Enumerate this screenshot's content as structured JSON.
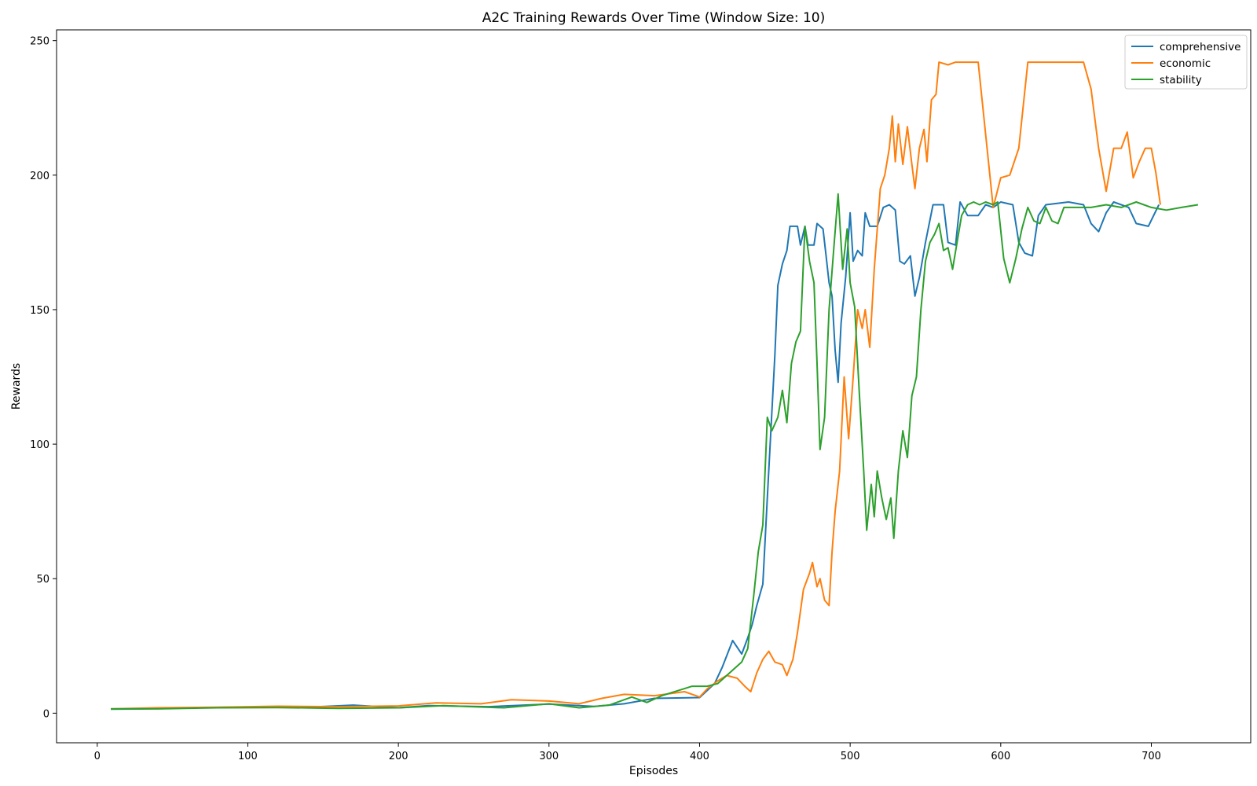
{
  "chart_data": {
    "type": "line",
    "title": "A2C Training Rewards Over Time (Window Size: 10)",
    "xlabel": "Episodes",
    "ylabel": "Rewards",
    "xlim": [
      -27,
      766
    ],
    "ylim": [
      -11,
      254
    ],
    "xticks": [
      0,
      100,
      200,
      300,
      400,
      500,
      600,
      700
    ],
    "yticks": [
      0,
      50,
      100,
      150,
      200,
      250
    ],
    "grid": false,
    "legend_position": "top-right",
    "series": [
      {
        "name": "comprehensive",
        "color": "#1f77b4",
        "points": [
          [
            9,
            1.5
          ],
          [
            30,
            1.6
          ],
          [
            60,
            2.0
          ],
          [
            100,
            2.3
          ],
          [
            140,
            2.2
          ],
          [
            170,
            3.0
          ],
          [
            200,
            2.0
          ],
          [
            220,
            2.8
          ],
          [
            260,
            2.4
          ],
          [
            300,
            3.4
          ],
          [
            330,
            2.5
          ],
          [
            350,
            3.5
          ],
          [
            370,
            5.5
          ],
          [
            400,
            5.8
          ],
          [
            410,
            11
          ],
          [
            415,
            17
          ],
          [
            422,
            27
          ],
          [
            428,
            22
          ],
          [
            432,
            28
          ],
          [
            435,
            33
          ],
          [
            438,
            40
          ],
          [
            442,
            48
          ],
          [
            445,
            80
          ],
          [
            448,
            112
          ],
          [
            450,
            133
          ],
          [
            452,
            159
          ],
          [
            455,
            167
          ],
          [
            458,
            172
          ],
          [
            460,
            181
          ],
          [
            465,
            181
          ],
          [
            467,
            174
          ],
          [
            470,
            181
          ],
          [
            472,
            174
          ],
          [
            476,
            174
          ],
          [
            478,
            182
          ],
          [
            482,
            180
          ],
          [
            484,
            170
          ],
          [
            486,
            160
          ],
          [
            488,
            155
          ],
          [
            490,
            135
          ],
          [
            492,
            123
          ],
          [
            494,
            145
          ],
          [
            497,
            162
          ],
          [
            500,
            186
          ],
          [
            502,
            168
          ],
          [
            505,
            172
          ],
          [
            508,
            170
          ],
          [
            510,
            186
          ],
          [
            513,
            181
          ],
          [
            518,
            181
          ],
          [
            522,
            188
          ],
          [
            526,
            189
          ],
          [
            530,
            187
          ],
          [
            533,
            168
          ],
          [
            536,
            167
          ],
          [
            540,
            170
          ],
          [
            543,
            155
          ],
          [
            546,
            162
          ],
          [
            550,
            175
          ],
          [
            555,
            189
          ],
          [
            562,
            189
          ],
          [
            565,
            175
          ],
          [
            570,
            174
          ],
          [
            573,
            190
          ],
          [
            578,
            185
          ],
          [
            585,
            185
          ],
          [
            590,
            189
          ],
          [
            595,
            188
          ],
          [
            600,
            190
          ],
          [
            608,
            189
          ],
          [
            612,
            175
          ],
          [
            616,
            171
          ],
          [
            621,
            170
          ],
          [
            625,
            185
          ],
          [
            630,
            189
          ],
          [
            645,
            190
          ],
          [
            655,
            189
          ],
          [
            660,
            182
          ],
          [
            665,
            179
          ],
          [
            670,
            186
          ],
          [
            675,
            190
          ],
          [
            685,
            188
          ],
          [
            690,
            182
          ],
          [
            698,
            181
          ],
          [
            705,
            189
          ]
        ]
      },
      {
        "name": "economic",
        "color": "#ff7f0e",
        "points": [
          [
            9,
            1.6
          ],
          [
            40,
            2.0
          ],
          [
            80,
            2.2
          ],
          [
            120,
            2.6
          ],
          [
            160,
            2.4
          ],
          [
            200,
            2.7
          ],
          [
            225,
            3.8
          ],
          [
            255,
            3.5
          ],
          [
            275,
            5.0
          ],
          [
            300,
            4.5
          ],
          [
            320,
            3.5
          ],
          [
            335,
            5.5
          ],
          [
            350,
            7.0
          ],
          [
            370,
            6.5
          ],
          [
            390,
            8.0
          ],
          [
            400,
            6.0
          ],
          [
            405,
            9.0
          ],
          [
            412,
            12
          ],
          [
            418,
            14
          ],
          [
            425,
            13
          ],
          [
            430,
            10
          ],
          [
            434,
            8
          ],
          [
            438,
            15
          ],
          [
            442,
            20
          ],
          [
            446,
            23
          ],
          [
            450,
            19
          ],
          [
            455,
            18
          ],
          [
            458,
            14
          ],
          [
            462,
            20
          ],
          [
            465,
            30
          ],
          [
            469,
            46
          ],
          [
            473,
            52
          ],
          [
            475,
            56
          ],
          [
            478,
            47
          ],
          [
            480,
            50
          ],
          [
            483,
            42
          ],
          [
            486,
            40
          ],
          [
            488,
            60
          ],
          [
            490,
            75
          ],
          [
            493,
            90
          ],
          [
            496,
            125
          ],
          [
            499,
            102
          ],
          [
            502,
            125
          ],
          [
            505,
            150
          ],
          [
            508,
            143
          ],
          [
            510,
            150
          ],
          [
            513,
            136
          ],
          [
            516,
            165
          ],
          [
            520,
            195
          ],
          [
            523,
            200
          ],
          [
            526,
            210
          ],
          [
            528,
            222
          ],
          [
            530,
            205
          ],
          [
            532,
            219
          ],
          [
            535,
            204
          ],
          [
            538,
            218
          ],
          [
            541,
            204
          ],
          [
            543,
            195
          ],
          [
            546,
            210
          ],
          [
            549,
            217
          ],
          [
            551,
            205
          ],
          [
            554,
            228
          ],
          [
            557,
            230
          ],
          [
            559,
            242
          ],
          [
            565,
            241
          ],
          [
            570,
            242
          ],
          [
            585,
            242
          ],
          [
            595,
            188
          ],
          [
            600,
            199
          ],
          [
            606,
            200
          ],
          [
            612,
            210
          ],
          [
            618,
            242
          ],
          [
            640,
            242
          ],
          [
            655,
            242
          ],
          [
            660,
            232
          ],
          [
            665,
            210
          ],
          [
            670,
            194
          ],
          [
            675,
            210
          ],
          [
            680,
            210
          ],
          [
            684,
            216
          ],
          [
            688,
            199
          ],
          [
            692,
            205
          ],
          [
            696,
            210
          ],
          [
            700,
            210
          ],
          [
            703,
            201
          ],
          [
            706,
            189
          ]
        ]
      },
      {
        "name": "stability",
        "color": "#2ca02c",
        "points": [
          [
            9,
            1.6
          ],
          [
            40,
            1.6
          ],
          [
            80,
            2.0
          ],
          [
            120,
            2.1
          ],
          [
            160,
            1.8
          ],
          [
            200,
            2.0
          ],
          [
            230,
            2.8
          ],
          [
            270,
            2.0
          ],
          [
            300,
            3.5
          ],
          [
            320,
            2.0
          ],
          [
            340,
            3.0
          ],
          [
            355,
            6.0
          ],
          [
            365,
            4.0
          ],
          [
            375,
            6.5
          ],
          [
            395,
            10
          ],
          [
            405,
            10
          ],
          [
            412,
            11
          ],
          [
            420,
            15
          ],
          [
            428,
            19
          ],
          [
            432,
            24
          ],
          [
            436,
            44
          ],
          [
            439,
            60
          ],
          [
            442,
            70
          ],
          [
            445,
            110
          ],
          [
            448,
            105
          ],
          [
            452,
            110
          ],
          [
            455,
            120
          ],
          [
            458,
            108
          ],
          [
            461,
            130
          ],
          [
            464,
            138
          ],
          [
            467,
            142
          ],
          [
            470,
            181
          ],
          [
            473,
            168
          ],
          [
            476,
            160
          ],
          [
            478,
            130
          ],
          [
            480,
            98
          ],
          [
            483,
            110
          ],
          [
            486,
            150
          ],
          [
            489,
            172
          ],
          [
            492,
            193
          ],
          [
            495,
            165
          ],
          [
            498,
            180
          ],
          [
            500,
            160
          ],
          [
            503,
            151
          ],
          [
            506,
            120
          ],
          [
            509,
            90
          ],
          [
            511,
            68
          ],
          [
            514,
            85
          ],
          [
            516,
            73
          ],
          [
            518,
            90
          ],
          [
            521,
            80
          ],
          [
            524,
            72
          ],
          [
            527,
            80
          ],
          [
            529,
            65
          ],
          [
            532,
            90
          ],
          [
            535,
            105
          ],
          [
            538,
            95
          ],
          [
            541,
            118
          ],
          [
            544,
            125
          ],
          [
            547,
            150
          ],
          [
            550,
            168
          ],
          [
            553,
            175
          ],
          [
            556,
            178
          ],
          [
            559,
            182
          ],
          [
            562,
            172
          ],
          [
            565,
            173
          ],
          [
            568,
            165
          ],
          [
            571,
            175
          ],
          [
            574,
            185
          ],
          [
            578,
            189
          ],
          [
            582,
            190
          ],
          [
            586,
            189
          ],
          [
            590,
            190
          ],
          [
            595,
            189
          ],
          [
            598,
            190
          ],
          [
            602,
            169
          ],
          [
            606,
            160
          ],
          [
            610,
            169
          ],
          [
            614,
            180
          ],
          [
            618,
            188
          ],
          [
            622,
            183
          ],
          [
            626,
            182
          ],
          [
            630,
            188
          ],
          [
            634,
            183
          ],
          [
            638,
            182
          ],
          [
            642,
            188
          ],
          [
            650,
            188
          ],
          [
            660,
            188
          ],
          [
            670,
            189
          ],
          [
            680,
            188
          ],
          [
            690,
            190
          ],
          [
            700,
            188
          ],
          [
            710,
            187
          ],
          [
            720,
            188
          ],
          [
            731,
            189
          ]
        ]
      }
    ]
  }
}
